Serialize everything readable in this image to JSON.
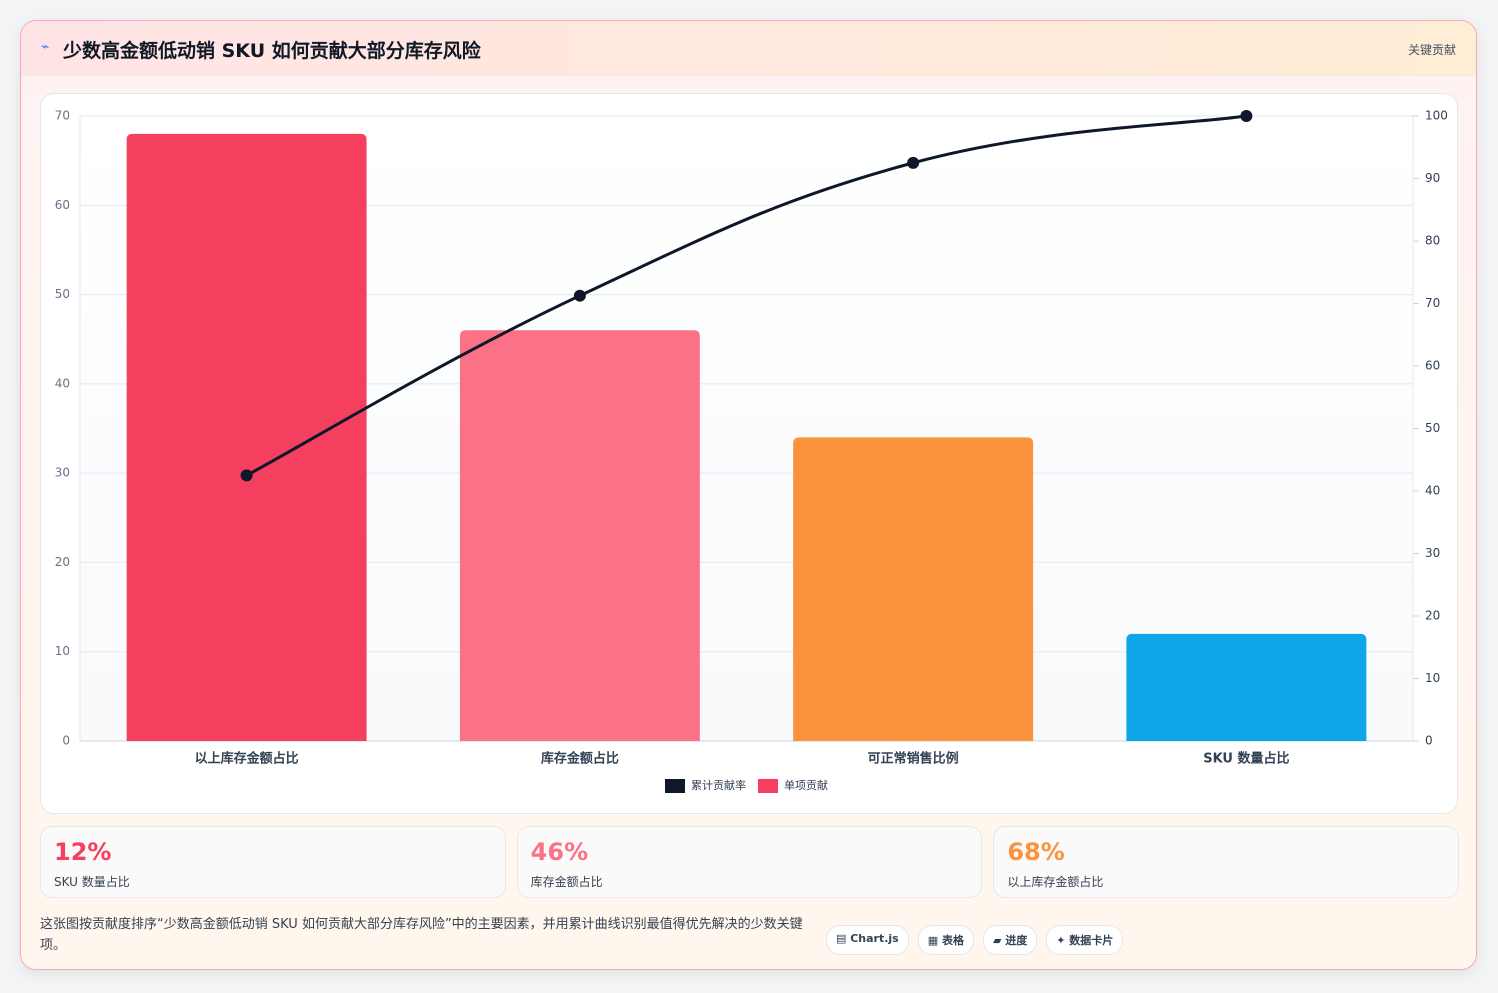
{
  "header": {
    "icon": "⌁",
    "title": "少数高金额低动销 SKU 如何贡献大部分库存风险",
    "badge": "关键贡献"
  },
  "chart_data": {
    "type": "bar",
    "categories": [
      "以上库存金额占比",
      "库存金额占比",
      "可正常销售比例",
      "SKU 数量占比"
    ],
    "series": [
      {
        "name": "累计贡献率",
        "type": "line",
        "axis": "y2",
        "color": "#0f172a",
        "values": [
          42.5,
          71.25,
          92.5,
          100
        ]
      },
      {
        "name": "单项贡献",
        "type": "bar",
        "color": "#f43f5e",
        "colors": [
          "#f43f5e",
          "#fb7185",
          "#fb923c",
          "#0ea5e9"
        ],
        "values": [
          68,
          46,
          34,
          12
        ]
      }
    ],
    "ylim": [
      0,
      70
    ],
    "yticks": [
      0,
      10,
      20,
      30,
      40,
      50,
      60,
      70
    ],
    "y2lim": [
      0,
      100
    ],
    "y2ticks": [
      0,
      10,
      20,
      30,
      40,
      50,
      60,
      70,
      80,
      90,
      100
    ],
    "grid": true,
    "legend": "bottom"
  },
  "cards": [
    {
      "value": "12%",
      "label": "SKU 数量占比",
      "color": "#f43f5e"
    },
    {
      "value": "46%",
      "label": "库存金额占比",
      "color": "#fb7185"
    },
    {
      "value": "68%",
      "label": "以上库存金额占比",
      "color": "#fb923c"
    }
  ],
  "footer": {
    "text": "这张图按贡献度排序“少数高金额低动销 SKU 如何贡献大部分库存风险”中的主要因素，并用累计曲线识别最值得优先解决的少数关键项。",
    "chips": [
      "▤ Chart.js",
      "▦ 表格",
      "▰ 进度",
      "✦ 数据卡片"
    ]
  }
}
